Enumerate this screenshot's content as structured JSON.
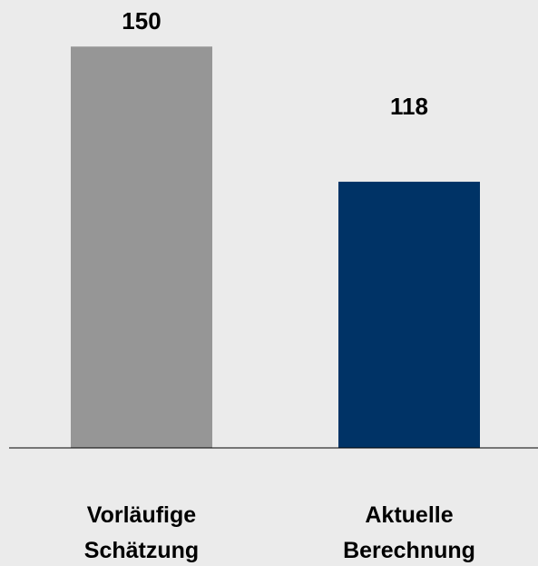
{
  "chart_data": {
    "type": "bar",
    "categories": [
      "Vorläufige Schätzung",
      "Aktuelle Berechnung"
    ],
    "values": [
      150,
      118
    ],
    "colors": [
      "#969696",
      "#003366"
    ],
    "ylim": [
      55,
      155
    ]
  }
}
